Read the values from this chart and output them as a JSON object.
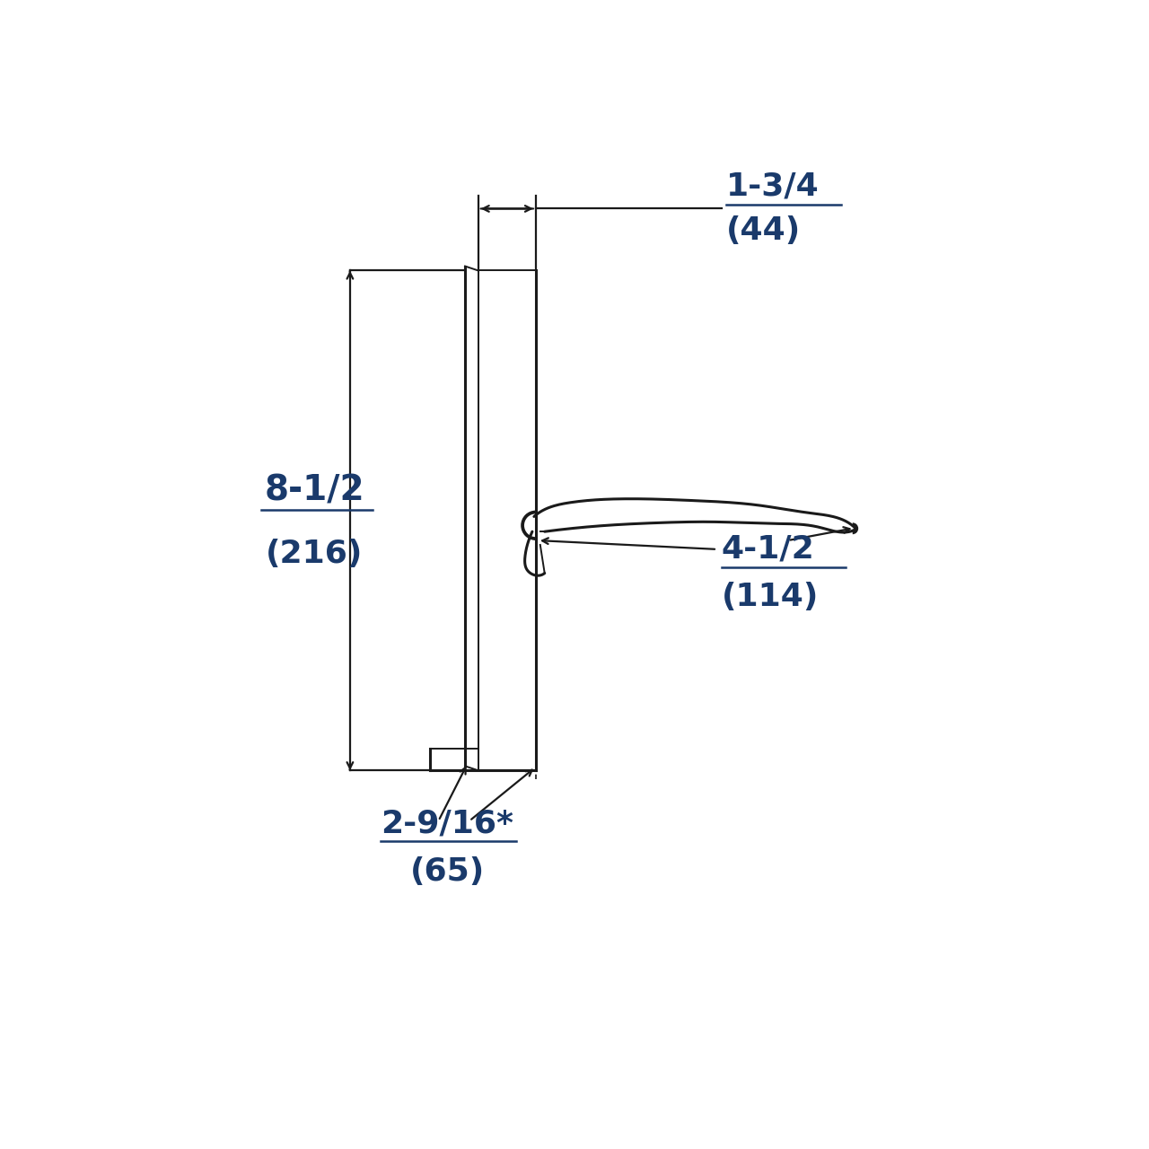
{
  "background_color": "#ffffff",
  "line_color": "#1a1a1a",
  "dim_color": "#1a3a6b",
  "lw_thick": 2.2,
  "lw_thin": 1.4,
  "lw_dim": 1.6,
  "dim_thickness_label": "1-3/4",
  "dim_thickness_sub": "(44)",
  "dim_height_label": "8-1/2",
  "dim_height_sub": "(216)",
  "dim_backset_label": "4-1/2",
  "dim_backset_sub": "(114)",
  "dim_setback_label": "2-9/16*",
  "dim_setback_sub": "(65)"
}
